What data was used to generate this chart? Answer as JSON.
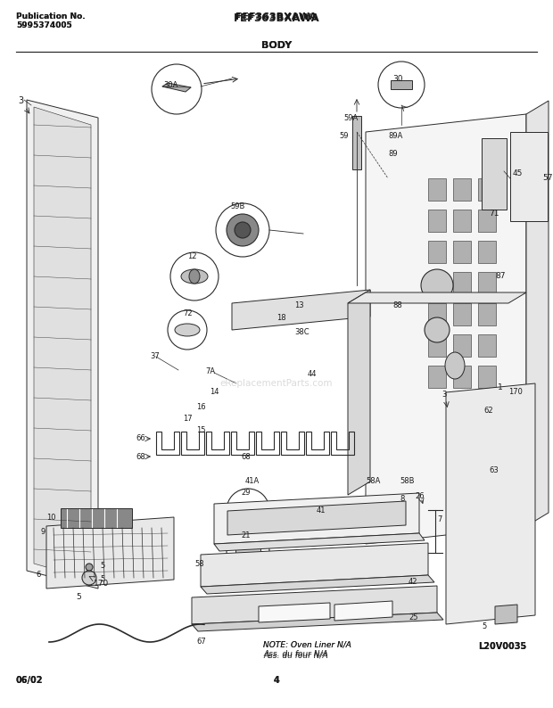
{
  "title_model": "FEF363BXAWA",
  "title_section": "BODY",
  "pub_label": "Publication No.",
  "pub_number": "5995374005",
  "date_code": "06/02",
  "page_number": "4",
  "diagram_code": "L20V0035",
  "note_line1": "NOTE: Oven Liner N/A",
  "note_line2": "Ass. du four N/A",
  "bg_color": "#ffffff",
  "text_color": "#1a1a1a",
  "line_color": "#2a2a2a",
  "fig_width": 6.2,
  "fig_height": 7.94,
  "dpi": 100
}
